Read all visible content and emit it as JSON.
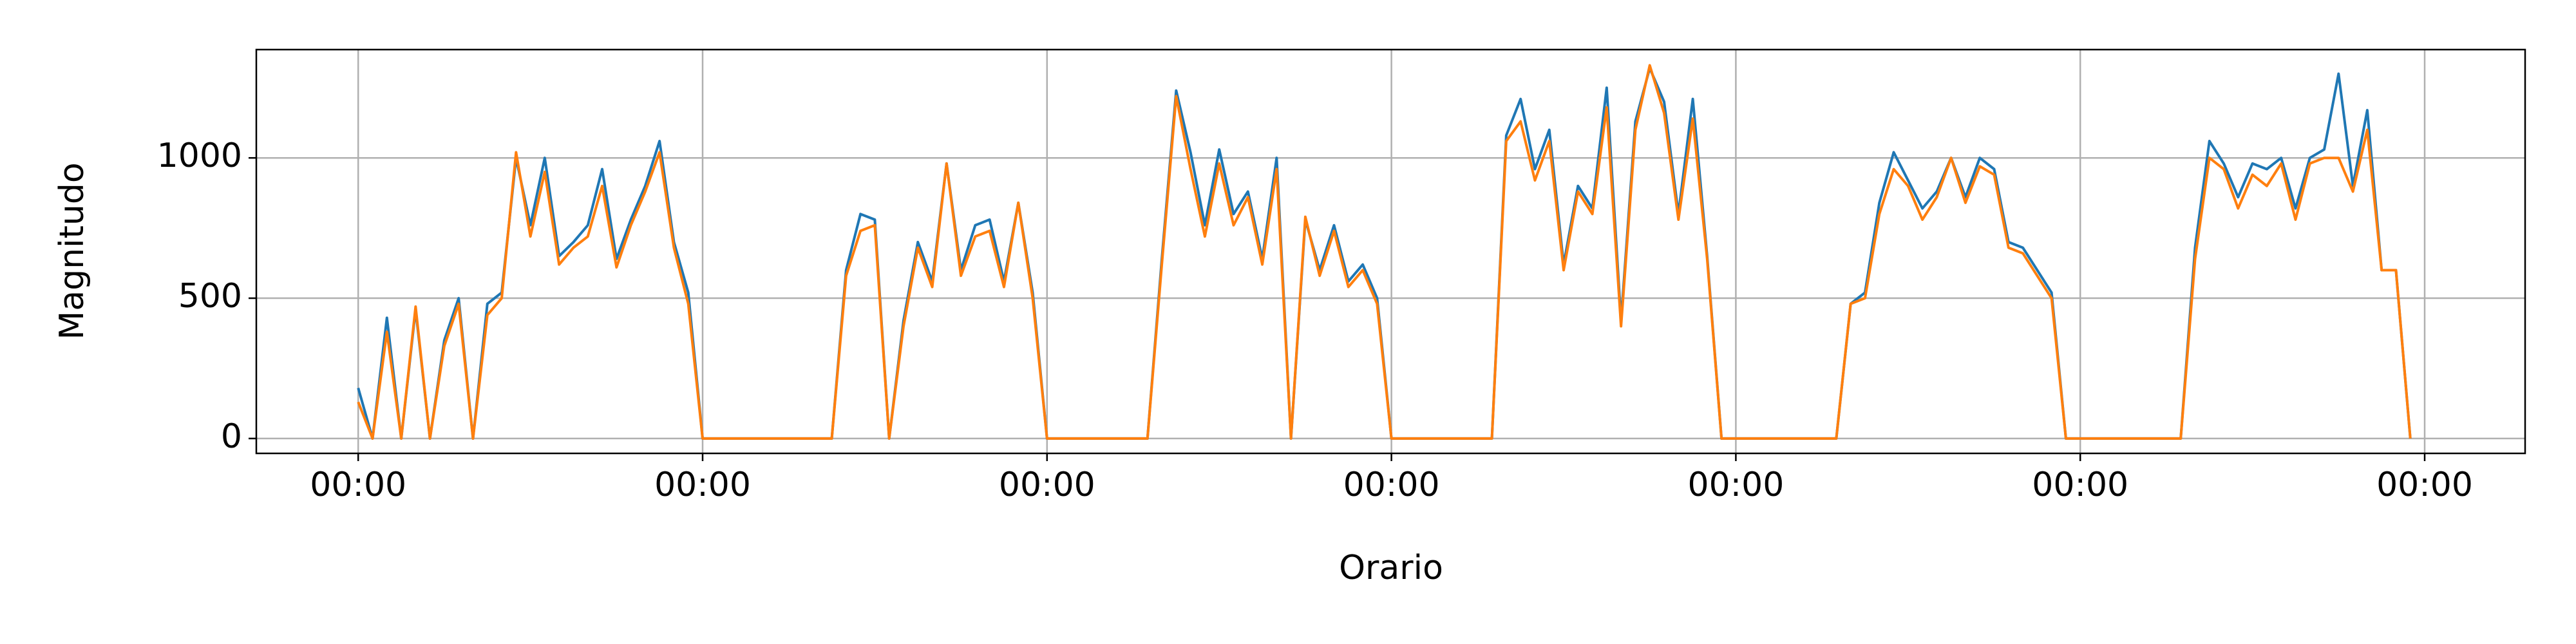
{
  "chart_data": {
    "type": "line",
    "x_label": "Orario",
    "y_label": "Magnitudo",
    "x": [
      0,
      1,
      2,
      3,
      4,
      5,
      6,
      7,
      8,
      9,
      10,
      11,
      12,
      13,
      14,
      15,
      16,
      17,
      18,
      19,
      20,
      21,
      22,
      23,
      24,
      25,
      26,
      27,
      28,
      29,
      30,
      31,
      32,
      33,
      34,
      35,
      36,
      37,
      38,
      39,
      40,
      41,
      42,
      43,
      44,
      45,
      46,
      47,
      48,
      49,
      50,
      51,
      52,
      53,
      54,
      55,
      56,
      57,
      58,
      59,
      60,
      61,
      62,
      63,
      64,
      65,
      66,
      67,
      68,
      69,
      70,
      71,
      72,
      73,
      74,
      75,
      76,
      77,
      78,
      79,
      80,
      81,
      82,
      83,
      84,
      85,
      86,
      87,
      88,
      89,
      90,
      91,
      92,
      93,
      94,
      95,
      96,
      97,
      98,
      99,
      100,
      101,
      102,
      103,
      104,
      105,
      106,
      107,
      108,
      109,
      110,
      111,
      112,
      113,
      114,
      115,
      116,
      117,
      118,
      119,
      120,
      121,
      122,
      123,
      124,
      125,
      126,
      127,
      128,
      129,
      130,
      131,
      132,
      133,
      134,
      135,
      136,
      137,
      138,
      139,
      140,
      141,
      142,
      143
    ],
    "series": [
      {
        "color": "#1f77b4",
        "values": [
          180,
          0,
          430,
          0,
          460,
          0,
          350,
          500,
          0,
          480,
          520,
          1000,
          760,
          1000,
          650,
          700,
          760,
          960,
          640,
          780,
          900,
          1060,
          700,
          520,
          0,
          0,
          0,
          0,
          0,
          0,
          0,
          0,
          0,
          0,
          600,
          800,
          780,
          0,
          420,
          700,
          560,
          980,
          600,
          760,
          780,
          560,
          840,
          520,
          0,
          0,
          0,
          0,
          0,
          0,
          0,
          0,
          640,
          1240,
          1020,
          760,
          1030,
          800,
          880,
          640,
          1000,
          0,
          780,
          600,
          760,
          560,
          620,
          500,
          0,
          0,
          0,
          0,
          0,
          0,
          0,
          0,
          1080,
          1210,
          960,
          1100,
          620,
          900,
          820,
          1250,
          420,
          1130,
          1320,
          1200,
          800,
          1210,
          650,
          0,
          0,
          0,
          0,
          0,
          0,
          0,
          0,
          0,
          480,
          520,
          840,
          1020,
          920,
          820,
          880,
          1000,
          860,
          1000,
          960,
          700,
          680,
          600,
          520,
          0,
          0,
          0,
          0,
          0,
          0,
          0,
          0,
          0,
          680,
          1060,
          980,
          860,
          980,
          960,
          1000,
          820,
          1000,
          1030,
          1300,
          900,
          1170,
          600,
          600,
          0
        ]
      },
      {
        "color": "#ff7f0e",
        "values": [
          130,
          0,
          380,
          0,
          470,
          0,
          330,
          480,
          0,
          440,
          500,
          1020,
          720,
          950,
          620,
          680,
          720,
          900,
          610,
          760,
          880,
          1020,
          680,
          480,
          0,
          0,
          0,
          0,
          0,
          0,
          0,
          0,
          0,
          0,
          580,
          740,
          760,
          0,
          400,
          680,
          540,
          980,
          580,
          720,
          740,
          540,
          840,
          500,
          0,
          0,
          0,
          0,
          0,
          0,
          0,
          0,
          620,
          1220,
          960,
          720,
          980,
          760,
          860,
          620,
          960,
          0,
          790,
          580,
          740,
          540,
          600,
          480,
          0,
          0,
          0,
          0,
          0,
          0,
          0,
          0,
          1060,
          1130,
          920,
          1060,
          600,
          880,
          800,
          1180,
          400,
          1100,
          1330,
          1160,
          780,
          1140,
          640,
          0,
          0,
          0,
          0,
          0,
          0,
          0,
          0,
          0,
          480,
          500,
          800,
          960,
          900,
          780,
          860,
          1000,
          840,
          970,
          940,
          680,
          660,
          580,
          500,
          0,
          0,
          0,
          0,
          0,
          0,
          0,
          0,
          0,
          640,
          1000,
          960,
          820,
          940,
          900,
          980,
          780,
          980,
          1000,
          1000,
          880,
          1100,
          600,
          600,
          0
        ]
      }
    ],
    "xlim": [
      -7.1,
      151
    ],
    "xticks": [
      {
        "value": 0,
        "label": "00:00"
      },
      {
        "value": 24,
        "label": "00:00"
      },
      {
        "value": 48,
        "label": "00:00"
      },
      {
        "value": 72,
        "label": "00:00"
      },
      {
        "value": 96,
        "label": "00:00"
      },
      {
        "value": 120,
        "label": "00:00"
      },
      {
        "value": 144,
        "label": "00:00"
      }
    ],
    "ylim": [
      -53,
      1386
    ],
    "yticks": [
      0,
      500,
      1000
    ],
    "grid": true
  }
}
